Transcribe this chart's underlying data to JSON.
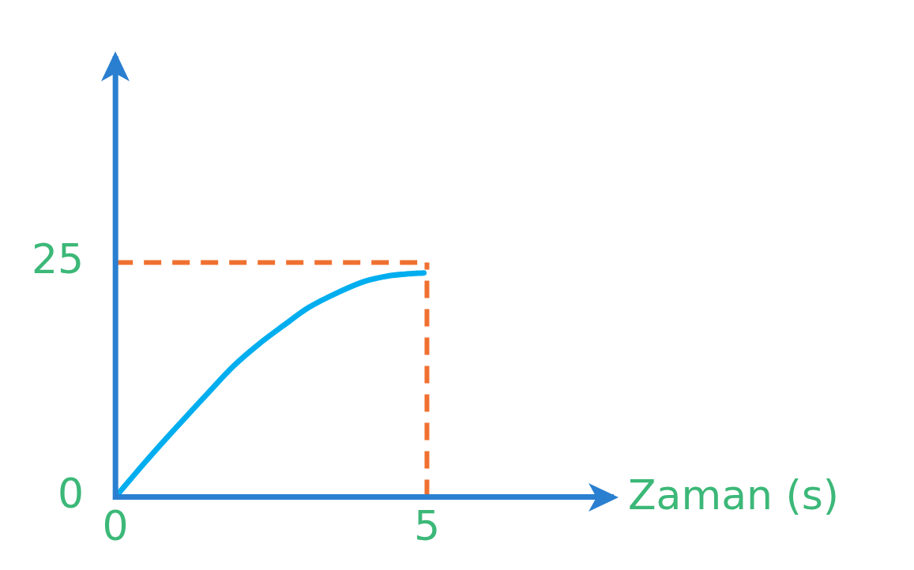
{
  "chart_data": {
    "type": "line",
    "xlabel": "Zaman (s)",
    "x": [
      0,
      0.5,
      1,
      1.5,
      1.9,
      2.3,
      2.7,
      3.1,
      3.6,
      4.0,
      4.4,
      4.7,
      4.95
    ],
    "series": [
      {
        "color": "#00aeef",
        "values": [
          0,
          3.9,
          7.6,
          11.2,
          14,
          16.3,
          18.3,
          20.2,
          21.9,
          23,
          23.6,
          23.8,
          23.9
        ]
      }
    ],
    "xlim": [
      0,
      8
    ],
    "ylim": [
      0,
      47
    ],
    "xticks": [
      0,
      5
    ],
    "yticks": [
      0,
      25
    ],
    "ref_lines": [
      {
        "axis": "y",
        "value": 25,
        "color": "#f07030",
        "line_style": "dashed"
      },
      {
        "axis": "x",
        "value": 5,
        "color": "#f07030",
        "line_style": "dashed"
      }
    ],
    "grid": false,
    "legend": false,
    "marker": "none",
    "line_style": "solid"
  }
}
